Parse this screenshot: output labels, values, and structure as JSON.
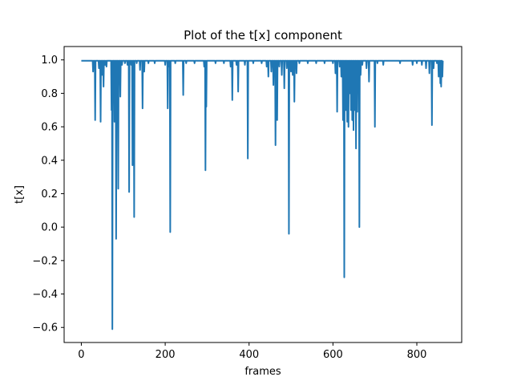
{
  "chart_data": {
    "type": "line",
    "title": "Plot of the t[x] component",
    "xlabel": "frames",
    "ylabel": "t[x]",
    "xlim": [
      -41,
      907
    ],
    "ylim": [
      -0.69,
      1.08
    ],
    "xticks": [
      0,
      200,
      400,
      600,
      800
    ],
    "xtick_labels": [
      "0",
      "200",
      "400",
      "600",
      "800"
    ],
    "yticks": [
      -0.6,
      -0.4,
      -0.2,
      0.0,
      0.2,
      0.4,
      0.6,
      0.8,
      1.0
    ],
    "ytick_labels": [
      "−0.6",
      "−0.4",
      "−0.2",
      "0.0",
      "0.2",
      "0.4",
      "0.6",
      "0.8",
      "1.0"
    ],
    "grid": false,
    "legend": "none",
    "series": [
      {
        "color": "#1f77b4",
        "baseline": 0.995,
        "x_range": [
          0,
          862
        ],
        "dips": [
          [
            28,
            0.93
          ],
          [
            33,
            0.64
          ],
          [
            42,
            0.95
          ],
          [
            46,
            0.63
          ],
          [
            49,
            0.91
          ],
          [
            53,
            0.84
          ],
          [
            57,
            0.97
          ],
          [
            60,
            0.96
          ],
          [
            72,
            0.7
          ],
          [
            74,
            -0.61
          ],
          [
            79,
            0.63
          ],
          [
            83,
            -0.07
          ],
          [
            88,
            0.23
          ],
          [
            93,
            0.78
          ],
          [
            97,
            0.97
          ],
          [
            104,
            0.98
          ],
          [
            110,
            0.97
          ],
          [
            114,
            0.21
          ],
          [
            119,
            0.97
          ],
          [
            122,
            0.37
          ],
          [
            126,
            0.06
          ],
          [
            132,
            0.98
          ],
          [
            140,
            0.94
          ],
          [
            146,
            0.71
          ],
          [
            150,
            0.93
          ],
          [
            160,
            0.98
          ],
          [
            175,
            0.98
          ],
          [
            200,
            0.97
          ],
          [
            206,
            0.71
          ],
          [
            210,
            0.96
          ],
          [
            212,
            -0.03
          ],
          [
            224,
            0.98
          ],
          [
            243,
            0.79
          ],
          [
            250,
            0.98
          ],
          [
            270,
            0.98
          ],
          [
            293,
            0.96
          ],
          [
            296,
            0.34
          ],
          [
            298,
            0.72
          ],
          [
            320,
            0.98
          ],
          [
            340,
            0.98
          ],
          [
            356,
            0.96
          ],
          [
            360,
            0.76
          ],
          [
            370,
            0.97
          ],
          [
            374,
            0.81
          ],
          [
            390,
            0.97
          ],
          [
            397,
            0.41
          ],
          [
            410,
            0.98
          ],
          [
            430,
            0.98
          ],
          [
            442,
            0.96
          ],
          [
            446,
            0.9
          ],
          [
            453,
            0.93
          ],
          [
            458,
            0.85
          ],
          [
            463,
            0.49
          ],
          [
            467,
            0.64
          ],
          [
            472,
            0.96
          ],
          [
            478,
            0.91
          ],
          [
            484,
            0.83
          ],
          [
            490,
            0.95
          ],
          [
            495,
            -0.04
          ],
          [
            500,
            0.93
          ],
          [
            504,
            0.91
          ],
          [
            508,
            0.75
          ],
          [
            513,
            0.92
          ],
          [
            520,
            0.98
          ],
          [
            540,
            0.98
          ],
          [
            560,
            0.98
          ],
          [
            580,
            0.98
          ],
          [
            600,
            0.98
          ],
          [
            606,
            0.92
          ],
          [
            610,
            0.69
          ],
          [
            616,
            0.96
          ],
          [
            620,
            0.9
          ],
          [
            624,
            0.64
          ],
          [
            627,
            -0.3
          ],
          [
            631,
            0.7
          ],
          [
            634,
            0.63
          ],
          [
            637,
            0.6
          ],
          [
            640,
            0.8
          ],
          [
            643,
            0.7
          ],
          [
            646,
            0.64
          ],
          [
            649,
            0.58
          ],
          [
            652,
            0.7
          ],
          [
            655,
            0.47
          ],
          [
            658,
            0.69
          ],
          [
            661,
            0.93
          ],
          [
            663,
            0.0
          ],
          [
            666,
            0.91
          ],
          [
            670,
            0.97
          ],
          [
            680,
            0.95
          ],
          [
            686,
            0.87
          ],
          [
            700,
            0.6
          ],
          [
            706,
            0.98
          ],
          [
            720,
            0.97
          ],
          [
            760,
            0.98
          ],
          [
            790,
            0.97
          ],
          [
            800,
            0.98
          ],
          [
            812,
            0.97
          ],
          [
            822,
            0.95
          ],
          [
            830,
            0.92
          ],
          [
            836,
            0.61
          ],
          [
            840,
            0.95
          ],
          [
            848,
            0.98
          ],
          [
            852,
            0.9
          ],
          [
            856,
            0.86
          ],
          [
            858,
            0.84
          ],
          [
            861,
            0.9
          ]
        ]
      }
    ]
  }
}
